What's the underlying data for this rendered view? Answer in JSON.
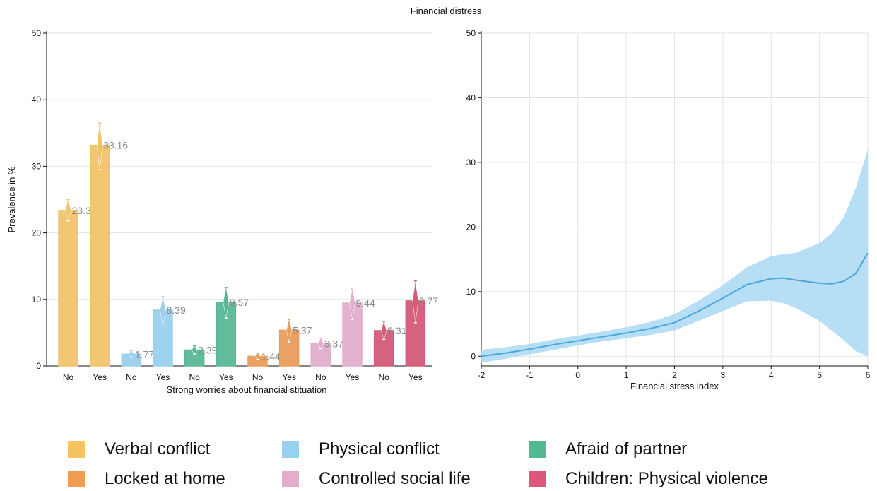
{
  "title": "Financial distress",
  "colors": {
    "verbal": "#f0c46a",
    "physical": "#9ad0ee",
    "afraid": "#58b894",
    "locked": "#e99d5c",
    "controlled": "#e0aecb",
    "children": "#d35a78",
    "line": "#4aa8dc",
    "band": "#a9d8f3",
    "grid": "#e3e3e3"
  },
  "chart_data": [
    {
      "type": "bar",
      "ylabel": "Prevalence in %",
      "xlabel": "Strong worries about financial stituation",
      "ylim": [
        0,
        50
      ],
      "yticks": [
        0,
        10,
        20,
        30,
        40,
        50
      ],
      "grid": true,
      "categories": [
        "No",
        "Yes",
        "No",
        "Yes",
        "No",
        "Yes",
        "No",
        "Yes",
        "No",
        "Yes",
        "No",
        "Yes"
      ],
      "bars": [
        {
          "series": "Verbal conflict",
          "group": "No",
          "value": 23.37,
          "label": "23.37",
          "ci": [
            21.8,
            25.0
          ],
          "color_key": "verbal"
        },
        {
          "series": "Verbal conflict",
          "group": "Yes",
          "value": 33.16,
          "label": "33.16",
          "ci": [
            29.5,
            36.5
          ],
          "color_key": "verbal"
        },
        {
          "series": "Physical conflict",
          "group": "No",
          "value": 1.77,
          "label": "1.77",
          "ci": [
            1.3,
            2.3
          ],
          "color_key": "physical"
        },
        {
          "series": "Physical conflict",
          "group": "Yes",
          "value": 8.39,
          "label": "8.39",
          "ci": [
            6.0,
            10.4
          ],
          "color_key": "physical"
        },
        {
          "series": "Afraid of partner",
          "group": "No",
          "value": 2.39,
          "label": "2.39",
          "ci": [
            1.8,
            3.0
          ],
          "color_key": "afraid"
        },
        {
          "series": "Afraid of partner",
          "group": "Yes",
          "value": 9.57,
          "label": "9.57",
          "ci": [
            7.2,
            11.8
          ],
          "color_key": "afraid"
        },
        {
          "series": "Locked at home",
          "group": "No",
          "value": 1.44,
          "label": "1.44",
          "ci": [
            1.0,
            1.9
          ],
          "color_key": "locked"
        },
        {
          "series": "Locked at home",
          "group": "Yes",
          "value": 5.37,
          "label": "5.37",
          "ci": [
            3.6,
            7.0
          ],
          "color_key": "locked"
        },
        {
          "series": "Controlled social life",
          "group": "No",
          "value": 3.37,
          "label": "3.37",
          "ci": [
            2.6,
            4.2
          ],
          "color_key": "controlled"
        },
        {
          "series": "Controlled social life",
          "group": "Yes",
          "value": 9.44,
          "label": "9.44",
          "ci": [
            7.0,
            11.7
          ],
          "color_key": "controlled"
        },
        {
          "series": "Children: Physical violence",
          "group": "No",
          "value": 5.31,
          "label": "5.31",
          "ci": [
            4.0,
            6.7
          ],
          "color_key": "children"
        },
        {
          "series": "Children: Physical violence",
          "group": "Yes",
          "value": 9.77,
          "label": "9.77",
          "ci": [
            6.5,
            12.8
          ],
          "color_key": "children"
        }
      ]
    },
    {
      "type": "line",
      "xlabel": "Financial stress index",
      "xlim": [
        -2,
        6
      ],
      "ylim": [
        0,
        50
      ],
      "xticks": [
        -2,
        -1,
        0,
        1,
        2,
        3,
        4,
        5,
        6
      ],
      "yticks": [
        0,
        10,
        20,
        30,
        40,
        50
      ],
      "grid": true,
      "series": [
        {
          "x": [
            -2,
            -1.5,
            -1,
            -0.5,
            0,
            0.5,
            1,
            1.5,
            2,
            2.5,
            3,
            3.5,
            4,
            4.25,
            4.5,
            5,
            5.25,
            5.5,
            5.75,
            6
          ],
          "y": [
            0,
            0.5,
            1.1,
            1.8,
            2.4,
            3.0,
            3.6,
            4.3,
            5.2,
            7.0,
            9.0,
            11.1,
            12.0,
            12.1,
            11.8,
            11.3,
            11.2,
            11.6,
            12.8,
            16.0
          ],
          "lower": [
            -1.0,
            -0.4,
            0.3,
            1.0,
            1.7,
            2.3,
            2.8,
            3.3,
            4.0,
            5.5,
            7.0,
            8.5,
            8.6,
            8.2,
            7.5,
            5.5,
            4.0,
            2.5,
            0.8,
            0.0
          ],
          "upper": [
            1.0,
            1.4,
            1.9,
            2.6,
            3.2,
            3.8,
            4.5,
            5.3,
            6.5,
            8.6,
            11.0,
            13.8,
            15.5,
            15.8,
            16.0,
            17.5,
            19.0,
            21.5,
            26.0,
            32.0
          ]
        }
      ]
    }
  ],
  "legend": [
    {
      "label": "Verbal conflict",
      "color_key": "verbal"
    },
    {
      "label": "Physical conflict",
      "color_key": "physical"
    },
    {
      "label": "Afraid of partner",
      "color_key": "afraid"
    },
    {
      "label": "Locked at home",
      "color_key": "locked"
    },
    {
      "label": "Controlled social life",
      "color_key": "controlled"
    },
    {
      "label": "Children: Physical violence",
      "color_key": "children"
    }
  ]
}
